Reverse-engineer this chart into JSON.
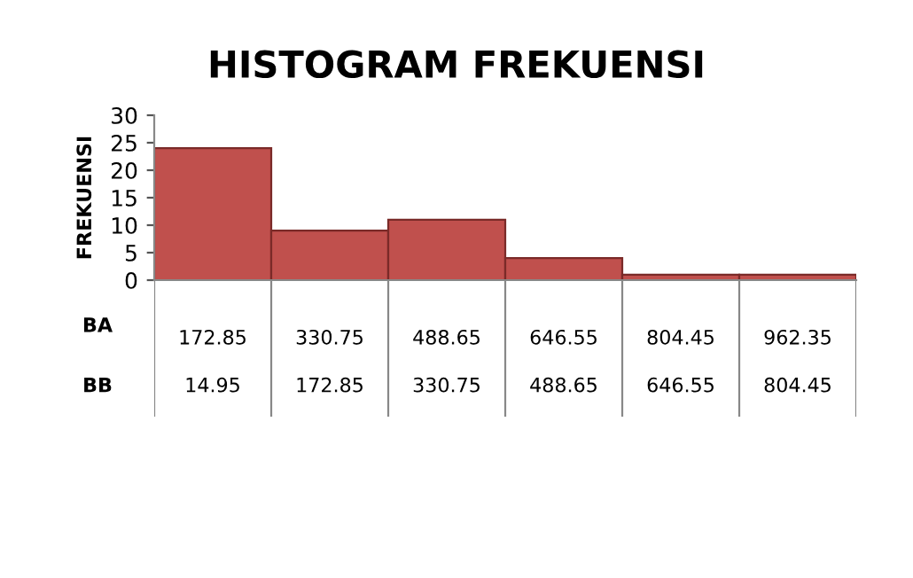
{
  "chart_data": {
    "type": "bar",
    "title": "HISTOGRAM FREKUENSI",
    "ylabel": "FREKUENSI",
    "categories": [
      "172.85",
      "330.75",
      "488.65",
      "646.55",
      "804.45",
      "962.35"
    ],
    "values": [
      24,
      9,
      11,
      4,
      1,
      1
    ],
    "color": "#c0504d",
    "ylim": [
      0,
      30
    ],
    "yticks": [
      0,
      5,
      10,
      15,
      20,
      25,
      30
    ],
    "annotations": [
      "BA",
      "BB",
      "14.95",
      "172.85",
      "330.75",
      "488.65",
      "646.55",
      "804.45"
    ],
    "grid": false,
    "legend": false
  }
}
